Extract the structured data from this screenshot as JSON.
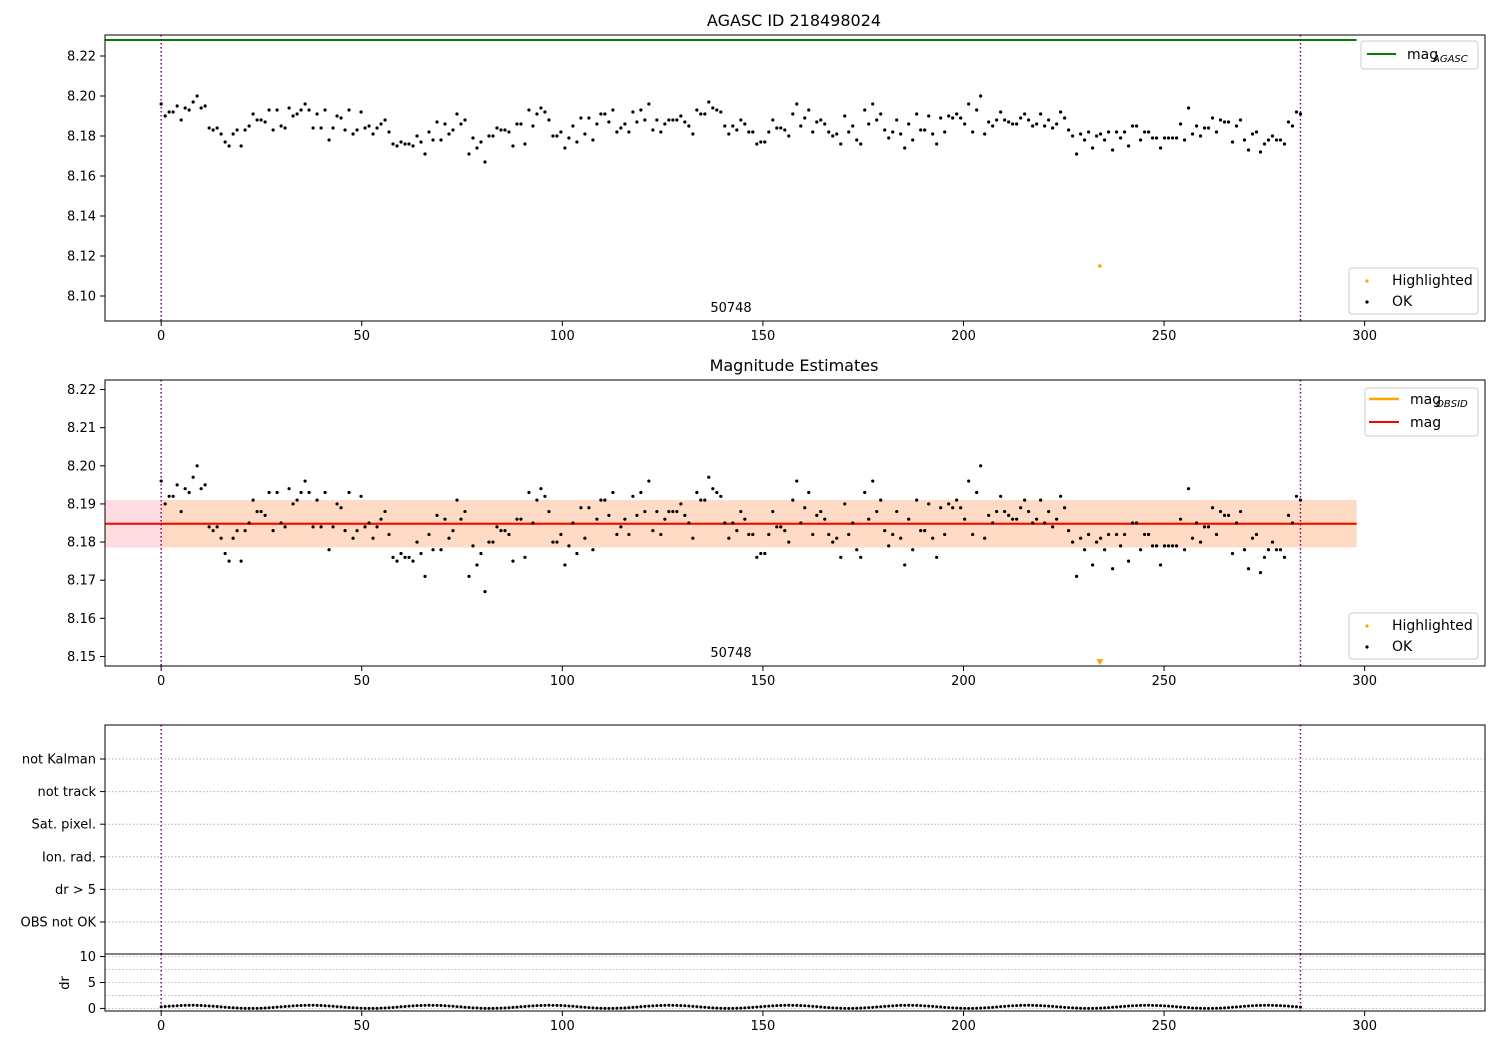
{
  "colors": {
    "ok": "#000000",
    "highlighted": "#ffa500",
    "agasc_line": "#008000",
    "mag_line": "#ff0000",
    "obsid_line": "#ffa500",
    "obs_boundary": "#800080",
    "band_mag": "#ffc0cb",
    "band_obsid": "#ffdab9",
    "grid": "#b0b0b0"
  },
  "chart_data": [
    {
      "id": "agasc",
      "type": "scatter",
      "title": "AGASC ID 218498024",
      "annotation": "50748",
      "xlim": [
        -14,
        330
      ],
      "ylim": [
        8.0875,
        8.2305
      ],
      "xticks": [
        0,
        50,
        100,
        150,
        200,
        250,
        300
      ],
      "xtick_labels": [
        "0",
        "50",
        "100",
        "150",
        "200",
        "250",
        "300"
      ],
      "yticks": [
        8.1,
        8.12,
        8.14,
        8.16,
        8.18,
        8.2,
        8.22
      ],
      "ytick_labels": [
        "8.10",
        "8.12",
        "8.14",
        "8.16",
        "8.18",
        "8.20",
        "8.22"
      ],
      "obs_boundaries": [
        0,
        284
      ],
      "mag_agasc": 8.228,
      "mag_agasc_x": [
        -14,
        298
      ],
      "highlighted": [
        {
          "x": 234,
          "y": 8.115
        }
      ],
      "legend_top": [
        {
          "label": "mag",
          "sub": "AGASC",
          "kind": "line",
          "color": "#008000"
        }
      ],
      "legend_bottom": [
        {
          "label": "Highlighted",
          "kind": "point",
          "color": "#ffa500"
        },
        {
          "label": "OK",
          "kind": "point",
          "color": "#000000"
        }
      ],
      "legend_placement": [
        "upper right",
        "lower right"
      ]
    },
    {
      "id": "mag_estimates",
      "type": "scatter",
      "title": "Magnitude Estimates",
      "annotation": "50748",
      "xlim": [
        -14,
        330
      ],
      "ylim": [
        8.1475,
        8.2225
      ],
      "xticks": [
        0,
        50,
        100,
        150,
        200,
        250,
        300
      ],
      "xtick_labels": [
        "0",
        "50",
        "100",
        "150",
        "200",
        "250",
        "300"
      ],
      "yticks": [
        8.15,
        8.16,
        8.17,
        8.18,
        8.19,
        8.2,
        8.21,
        8.22
      ],
      "ytick_labels": [
        "8.15",
        "8.16",
        "8.17",
        "8.18",
        "8.19",
        "8.20",
        "8.21",
        "8.22"
      ],
      "obs_boundaries": [
        0,
        284
      ],
      "mag": 8.1848,
      "mag_band": [
        8.1786,
        8.191
      ],
      "mag_x": [
        -14,
        298
      ],
      "mag_obsid": 8.1848,
      "obsid_band": [
        8.1786,
        8.191
      ],
      "obsid_x": [
        0,
        298
      ],
      "highlighted_marker": {
        "x": 234,
        "y": 8.1485,
        "marker": "triangle-down"
      },
      "legend_top": [
        {
          "label": "mag",
          "sub": "OBSID",
          "kind": "line",
          "color": "#ffa500"
        },
        {
          "label": "mag",
          "sub": "",
          "kind": "line",
          "color": "#ff0000"
        }
      ],
      "legend_bottom": [
        {
          "label": "Highlighted",
          "kind": "point",
          "color": "#ffa500"
        },
        {
          "label": "OK",
          "kind": "point",
          "color": "#000000"
        }
      ],
      "legend_placement": [
        "upper right",
        "lower right"
      ]
    },
    {
      "id": "flags",
      "type": "scatter",
      "xlim": [
        -14,
        330
      ],
      "categories": [
        "not Kalman",
        "not track",
        "Sat. pixel.",
        "Ion. rad.",
        "dr > 5",
        "OBS not OK"
      ],
      "flagged_points": [],
      "obs_boundaries": [
        0,
        284
      ],
      "grid": true
    },
    {
      "id": "dr",
      "type": "scatter",
      "ylabel": "dr",
      "xlim": [
        -14,
        330
      ],
      "ylim": [
        -0.5,
        10.5
      ],
      "yticks": [
        0,
        5,
        10
      ],
      "ytick_labels": [
        "0",
        "5",
        "10"
      ],
      "xticks": [
        0,
        50,
        100,
        150,
        200,
        250,
        300
      ],
      "xtick_labels": [
        "0",
        "50",
        "100",
        "150",
        "200",
        "250",
        "300"
      ],
      "obs_boundaries": [
        0,
        284
      ],
      "grid": true,
      "dr_range": [
        0,
        0.6
      ]
    }
  ],
  "observations": {
    "x_range": [
      0,
      284
    ],
    "mag_samples": [
      8.196,
      8.19,
      8.192,
      8.192,
      8.195,
      8.188,
      8.194,
      8.193,
      8.197,
      8.2,
      8.194,
      8.195,
      8.184,
      8.183,
      8.184,
      8.181,
      8.177,
      8.175,
      8.181,
      8.183,
      8.175,
      8.183,
      8.185,
      8.191,
      8.188,
      8.188,
      8.187,
      8.193,
      8.183,
      8.193,
      8.185,
      8.184,
      8.194,
      8.19,
      8.191,
      8.193,
      8.196,
      8.193,
      8.184,
      8.191,
      8.184,
      8.193,
      8.178,
      8.184,
      8.19,
      8.189,
      8.183,
      8.193,
      8.181,
      8.183,
      8.192,
      8.184,
      8.185,
      8.181,
      8.184,
      8.186,
      8.188,
      8.182,
      8.176,
      8.175,
      8.177,
      8.176,
      8.176,
      8.175,
      8.18,
      8.177,
      8.171,
      8.182,
      8.178,
      8.187,
      8.178,
      8.186,
      8.181,
      8.183,
      8.191,
      8.186,
      8.188,
      8.171,
      8.179,
      8.174,
      8.177,
      8.167,
      8.18,
      8.18,
      8.184,
      8.183,
      8.183,
      8.182,
      8.175,
      8.186,
      8.186,
      8.176,
      8.193,
      8.185,
      8.191,
      8.194,
      8.192,
      8.188,
      8.18,
      8.18,
      8.182,
      8.174,
      8.179,
      8.185,
      8.177,
      8.189,
      8.181,
      8.189,
      8.178,
      8.186,
      8.191,
      8.191,
      8.187,
      8.193,
      8.182,
      8.184,
      8.186,
      8.182,
      8.192,
      8.187,
      8.193,
      8.188,
      8.196,
      8.183,
      8.188,
      8.182,
      8.186,
      8.188,
      8.188,
      8.188,
      8.19,
      8.187,
      8.185,
      8.181,
      8.193,
      8.191,
      8.191,
      8.197,
      8.194,
      8.193,
      8.192,
      8.185,
      8.181,
      8.185,
      8.183,
      8.188,
      8.186,
      8.182,
      8.182,
      8.176,
      8.177,
      8.177,
      8.182,
      8.188,
      8.184,
      8.184,
      8.183,
      8.18,
      8.191,
      8.196,
      8.185,
      8.189,
      8.193,
      8.182,
      8.187,
      8.188,
      8.186,
      8.182,
      8.18,
      8.181,
      8.176,
      8.19,
      8.182,
      8.185,
      8.178,
      8.176,
      8.193,
      8.186,
      8.196,
      8.188,
      8.191,
      8.183,
      8.179,
      8.182,
      8.188,
      8.181,
      8.174,
      8.186,
      8.178,
      8.191,
      8.183,
      8.183,
      8.19,
      8.181,
      8.176,
      8.189,
      8.182,
      8.19,
      8.189,
      8.191,
      8.189,
      8.186,
      8.196,
      8.182,
      8.193,
      8.2,
      8.181,
      8.187,
      8.185,
      8.188,
      8.192,
      8.188,
      8.187,
      8.186,
      8.186,
      8.189,
      8.191,
      8.188,
      8.185,
      8.186,
      8.191,
      8.185,
      8.188,
      8.184,
      8.186,
      8.192,
      8.189,
      8.183,
      8.18,
      8.171,
      8.181,
      8.178,
      8.182,
      8.174,
      8.18,
      8.181,
      8.178,
      8.182,
      8.173,
      8.182,
      8.179,
      8.182,
      8.175,
      8.185,
      8.185,
      8.178,
      8.182,
      8.182,
      8.179,
      8.179,
      8.174,
      8.179,
      8.179,
      8.179,
      8.179,
      8.186,
      8.178,
      8.194,
      8.181,
      8.185,
      8.18,
      8.184,
      8.184,
      8.189,
      8.182,
      8.188,
      8.187,
      8.187,
      8.177,
      8.185,
      8.188,
      8.178,
      8.173,
      8.181,
      8.182,
      8.172,
      8.176,
      8.178,
      8.18,
      8.178,
      8.178,
      8.176,
      8.187,
      8.185,
      8.192,
      8.191
    ]
  }
}
